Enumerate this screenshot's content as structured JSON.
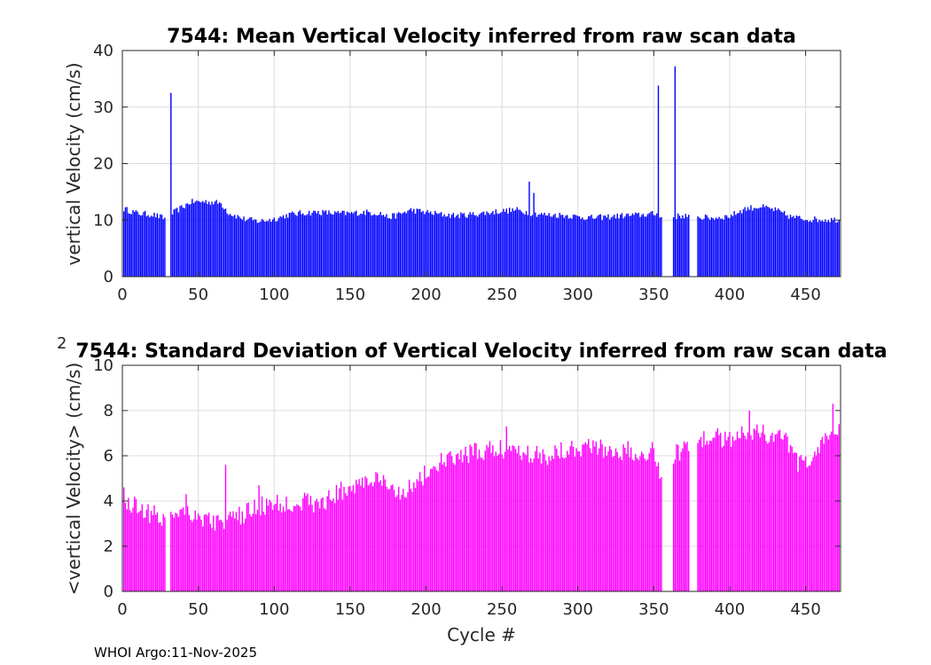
{
  "footer": "WHOI Argo:11-Nov-2025",
  "chart_data": [
    {
      "type": "bar",
      "title": "7544: Mean Vertical Velocity inferred from raw scan data",
      "xlabel": "",
      "ylabel": "vertical Velocity (cm/s)",
      "xlim": [
        0,
        473
      ],
      "ylim": [
        0,
        40
      ],
      "xticks": [
        "0",
        "50",
        "100",
        "150",
        "200",
        "250",
        "300",
        "350",
        "400",
        "450"
      ],
      "yticks": [
        "0",
        "10",
        "20",
        "30",
        "40"
      ],
      "grid": true,
      "color": "#0000ff",
      "gaps": [
        [
          29,
          31
        ],
        [
          356,
          362
        ],
        [
          374,
          378
        ]
      ],
      "spikes": [
        [
          32,
          32.5
        ],
        [
          268,
          16.8
        ],
        [
          271,
          14.8
        ],
        [
          353,
          33.8
        ],
        [
          364,
          37.2
        ]
      ],
      "anchors": [
        [
          1,
          12.0
        ],
        [
          10,
          11.2
        ],
        [
          20,
          11.0
        ],
        [
          28,
          10.3
        ],
        [
          33,
          11.2
        ],
        [
          45,
          13.2
        ],
        [
          55,
          13.3
        ],
        [
          65,
          13.0
        ],
        [
          70,
          11.3
        ],
        [
          80,
          10.2
        ],
        [
          90,
          9.8
        ],
        [
          100,
          10.2
        ],
        [
          110,
          11.0
        ],
        [
          120,
          11.3
        ],
        [
          130,
          11.4
        ],
        [
          140,
          11.2
        ],
        [
          150,
          11.2
        ],
        [
          160,
          11.4
        ],
        [
          170,
          11.2
        ],
        [
          175,
          10.5
        ],
        [
          180,
          10.8
        ],
        [
          190,
          11.8
        ],
        [
          200,
          11.4
        ],
        [
          210,
          11.0
        ],
        [
          220,
          10.8
        ],
        [
          230,
          11.0
        ],
        [
          240,
          11.3
        ],
        [
          250,
          11.6
        ],
        [
          260,
          11.8
        ],
        [
          270,
          11.2
        ],
        [
          280,
          10.9
        ],
        [
          290,
          10.9
        ],
        [
          300,
          10.6
        ],
        [
          310,
          10.4
        ],
        [
          320,
          10.6
        ],
        [
          330,
          10.8
        ],
        [
          340,
          10.9
        ],
        [
          350,
          11.1
        ],
        [
          363,
          10.6
        ],
        [
          370,
          10.8
        ],
        [
          380,
          10.5
        ],
        [
          390,
          10.4
        ],
        [
          400,
          10.7
        ],
        [
          410,
          12.0
        ],
        [
          420,
          12.4
        ],
        [
          430,
          11.8
        ],
        [
          440,
          10.6
        ],
        [
          450,
          10.2
        ],
        [
          460,
          10.1
        ],
        [
          472,
          10.1
        ]
      ],
      "noise": 0.55
    },
    {
      "type": "bar",
      "title": "7544: Standard Deviation of Vertical Velocity inferred from raw scan data",
      "xlabel": "Cycle #",
      "ylabel": "<vertical Velocity> (cm/s)",
      "ylabel_superscript": "2",
      "xlim": [
        0,
        473
      ],
      "ylim": [
        0,
        10
      ],
      "xticks": [
        "0",
        "50",
        "100",
        "150",
        "200",
        "250",
        "300",
        "350",
        "400",
        "450"
      ],
      "yticks": [
        "0",
        "2",
        "4",
        "6",
        "8",
        "10"
      ],
      "grid": true,
      "color": "#ff00ff",
      "gaps": [
        [
          29,
          31
        ],
        [
          356,
          362
        ],
        [
          374,
          378
        ]
      ],
      "spikes": [
        [
          1,
          4.6
        ],
        [
          42,
          4.3
        ],
        [
          68,
          5.6
        ],
        [
          90,
          4.7
        ],
        [
          253,
          7.3
        ],
        [
          413,
          8.0
        ],
        [
          468,
          8.3
        ]
      ],
      "anchors": [
        [
          1,
          3.9
        ],
        [
          10,
          3.8
        ],
        [
          20,
          3.4
        ],
        [
          28,
          3.2
        ],
        [
          33,
          3.5
        ],
        [
          40,
          3.7
        ],
        [
          50,
          3.3
        ],
        [
          60,
          3.1
        ],
        [
          70,
          3.1
        ],
        [
          80,
          3.4
        ],
        [
          90,
          3.8
        ],
        [
          100,
          3.8
        ],
        [
          110,
          3.9
        ],
        [
          120,
          4.0
        ],
        [
          130,
          3.8
        ],
        [
          140,
          4.3
        ],
        [
          150,
          4.6
        ],
        [
          160,
          4.9
        ],
        [
          170,
          4.9
        ],
        [
          175,
          4.5
        ],
        [
          180,
          4.4
        ],
        [
          190,
          4.6
        ],
        [
          200,
          5.2
        ],
        [
          210,
          5.7
        ],
        [
          220,
          5.9
        ],
        [
          230,
          6.1
        ],
        [
          240,
          6.2
        ],
        [
          250,
          6.3
        ],
        [
          260,
          6.3
        ],
        [
          270,
          6.1
        ],
        [
          280,
          6.0
        ],
        [
          290,
          6.3
        ],
        [
          300,
          6.4
        ],
        [
          310,
          6.4
        ],
        [
          320,
          6.3
        ],
        [
          330,
          6.2
        ],
        [
          340,
          6.2
        ],
        [
          350,
          6.2
        ],
        [
          355,
          5.2
        ],
        [
          363,
          6.0
        ],
        [
          370,
          6.4
        ],
        [
          380,
          6.8
        ],
        [
          390,
          6.8
        ],
        [
          400,
          6.8
        ],
        [
          410,
          7.1
        ],
        [
          420,
          7.0
        ],
        [
          430,
          6.9
        ],
        [
          440,
          6.5
        ],
        [
          445,
          5.5
        ],
        [
          450,
          5.8
        ],
        [
          460,
          6.3
        ],
        [
          472,
          7.4
        ]
      ],
      "noise": 0.45
    }
  ]
}
